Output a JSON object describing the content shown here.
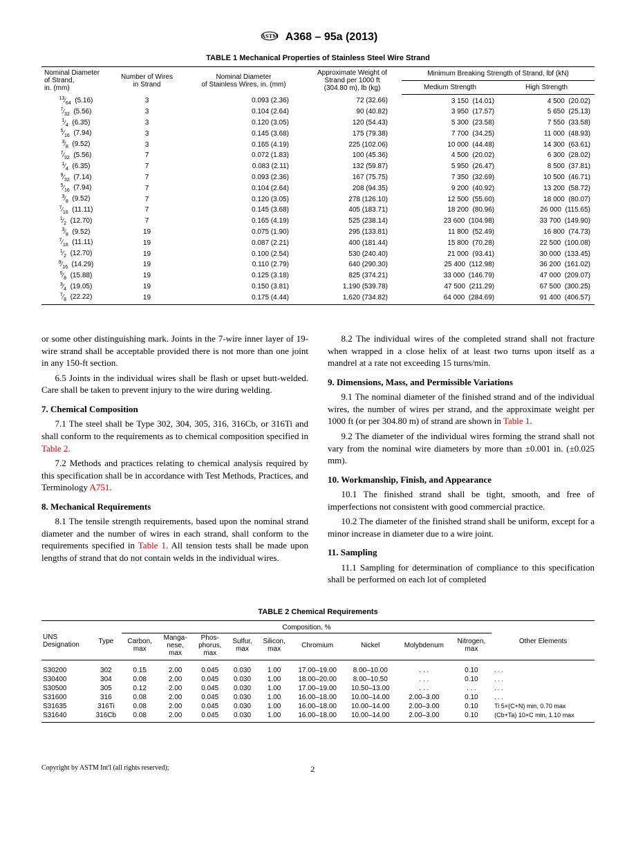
{
  "header": {
    "doc_id": "A368 – 95a (2013)"
  },
  "table1": {
    "caption": "TABLE 1 Mechanical Properties of Stainless Steel Wire Strand",
    "col_headers": {
      "nom_dia": "Nominal Diameter of Strand, in. (mm)",
      "num_wires": "Number of Wires in Strand",
      "wire_dia": "Nominal Diameter of Stainless Wires, in. (mm)",
      "weight": "Approximate Weight of Strand per 1000 ft (304.80 m), lb (kg)",
      "strength": "Minimum Breaking Strength of Strand, lbf (kN)",
      "med": "Medium Strength",
      "high": "High Strength"
    },
    "rows": [
      {
        "frac": "13/64",
        "mm": "(5.16)",
        "nw": "3",
        "wd": "0.093 (2.36)",
        "wt": "72",
        "wtk": "(32.66)",
        "ms": "3 150",
        "msk": "(14.01)",
        "hs": "4 500",
        "hsk": "(20.02)"
      },
      {
        "frac": "7/32",
        "mm": "(5.56)",
        "nw": "3",
        "wd": "0.104 (2.64)",
        "wt": "90",
        "wtk": "(40.82)",
        "ms": "3 950",
        "msk": "(17.57)",
        "hs": "5 650",
        "hsk": "(25.13)"
      },
      {
        "frac": "1/4",
        "mm": "(6.35)",
        "nw": "3",
        "wd": "0.120 (3.05)",
        "wt": "120",
        "wtk": "(54.43)",
        "ms": "5 300",
        "msk": "(23.58)",
        "hs": "7 550",
        "hsk": "(33.58)"
      },
      {
        "frac": "5/16",
        "mm": "(7.94)",
        "nw": "3",
        "wd": "0.145 (3.68)",
        "wt": "175",
        "wtk": "(79.38)",
        "ms": "7 700",
        "msk": "(34.25)",
        "hs": "11 000",
        "hsk": "(48.93)"
      },
      {
        "frac": "3/8",
        "mm": "(9.52)",
        "nw": "3",
        "wd": "0.165 (4.19)",
        "wt": "225",
        "wtk": "(102.06)",
        "ms": "10 000",
        "msk": "(44.48)",
        "hs": "14 300",
        "hsk": "(63.61)"
      },
      {
        "frac": "7/32",
        "mm": "(5.56)",
        "nw": "7",
        "wd": "0.072 (1.83)",
        "wt": "100",
        "wtk": "(45.36)",
        "ms": "4 500",
        "msk": "(20.02)",
        "hs": "6 300",
        "hsk": "(28.02)"
      },
      {
        "frac": "1/4",
        "mm": "(6.35)",
        "nw": "7",
        "wd": "0.083 (2.11)",
        "wt": "132",
        "wtk": "(59.87)",
        "ms": "5 950",
        "msk": "(26.47)",
        "hs": "8 500",
        "hsk": "(37.81)"
      },
      {
        "frac": "9/32",
        "mm": "(7.14)",
        "nw": "7",
        "wd": "0.093 (2.36)",
        "wt": "167",
        "wtk": "(75.75)",
        "ms": "7 350",
        "msk": "(32.69)",
        "hs": "10 500",
        "hsk": "(46.71)"
      },
      {
        "frac": "5/16",
        "mm": "(7.94)",
        "nw": "7",
        "wd": "0.104 (2.64)",
        "wt": "208",
        "wtk": "(94.35)",
        "ms": "9 200",
        "msk": "(40.92)",
        "hs": "13 200",
        "hsk": "(58.72)"
      },
      {
        "frac": "3/8",
        "mm": "(9.52)",
        "nw": "7",
        "wd": "0.120 (3.05)",
        "wt": "278",
        "wtk": "(126.10)",
        "ms": "12 500",
        "msk": "(55.60)",
        "hs": "18 000",
        "hsk": "(80.07)"
      },
      {
        "frac": "7/16",
        "mm": "(11.11)",
        "nw": "7",
        "wd": "0.145 (3.68)",
        "wt": "405",
        "wtk": "(183.71)",
        "ms": "18 200",
        "msk": "(80.96)",
        "hs": "26 000",
        "hsk": "(115.65)"
      },
      {
        "frac": "1/2",
        "mm": "(12.70)",
        "nw": "7",
        "wd": "0.165 (4.19)",
        "wt": "525",
        "wtk": "(238.14)",
        "ms": "23 600",
        "msk": "(104.98)",
        "hs": "33 700",
        "hsk": "(149.90)"
      },
      {
        "frac": "3/8",
        "mm": "(9.52)",
        "nw": "19",
        "wd": "0.075 (1.90)",
        "wt": "295",
        "wtk": "(133.81)",
        "ms": "11 800",
        "msk": "(52.49)",
        "hs": "16 800",
        "hsk": "(74.73)"
      },
      {
        "frac": "7/16",
        "mm": "(11.11)",
        "nw": "19",
        "wd": "0.087 (2.21)",
        "wt": "400",
        "wtk": "(181.44)",
        "ms": "15 800",
        "msk": "(70.28)",
        "hs": "22 500",
        "hsk": "(100.08)"
      },
      {
        "frac": "1/2",
        "mm": "(12.70)",
        "nw": "19",
        "wd": "0.100 (2.54)",
        "wt": "530",
        "wtk": "(240.40)",
        "ms": "21 000",
        "msk": "(93.41)",
        "hs": "30 000",
        "hsk": "(133.45)"
      },
      {
        "frac": "9/16",
        "mm": "(14.29)",
        "nw": "19",
        "wd": "0.110 (2.79)",
        "wt": "640",
        "wtk": "(290.30)",
        "ms": "25 400",
        "msk": "(112.98)",
        "hs": "36 200",
        "hsk": "(161.02)"
      },
      {
        "frac": "5/8",
        "mm": "(15.88)",
        "nw": "19",
        "wd": "0.125 (3.18)",
        "wt": "825",
        "wtk": "(374.21)",
        "ms": "33 000",
        "msk": "(146.79)",
        "hs": "47 000",
        "hsk": "(209.07)"
      },
      {
        "frac": "3/4",
        "mm": "(19.05)",
        "nw": "19",
        "wd": "0.150 (3.81)",
        "wt": "1,190",
        "wtk": "(539.78)",
        "ms": "47 500",
        "msk": "(211.29)",
        "hs": "67 500",
        "hsk": "(300.25)"
      },
      {
        "frac": "7/8",
        "mm": "(22.22)",
        "nw": "19",
        "wd": "0.175 (4.44)",
        "wt": "1,620",
        "wtk": "(734.82)",
        "ms": "64 000",
        "msk": "(284.69)",
        "hs": "91 400",
        "hsk": "(406.57)"
      }
    ]
  },
  "body": {
    "left": {
      "p1": "or some other distinguishing mark. Joints in the 7-wire inner layer of 19-wire strand shall be acceptable provided there is not more than one joint in any 150-ft section.",
      "p65": "6.5 Joints in the individual wires shall be flash or upset butt-welded. Care shall be taken to prevent injury to the wire during welding.",
      "h7": "7. Chemical Composition",
      "p71a": "7.1 The steel shall be Type 302, 304, 305, 316, 316Cb, or 316Ti and shall conform to the requirements as to chemical composition specified in ",
      "p71_link": "Table 2",
      "p71b": ".",
      "p72a": "7.2 Methods and practices relating to chemical analysis required by this specification shall be in accordance with Test Methods, Practices, and Terminology ",
      "p72_link": "A751",
      "p72b": ".",
      "h8": "8. Mechanical Requirements",
      "p81a": "8.1 The tensile strength requirements, based upon the nominal strand diameter and the number of wires in each strand, shall conform to the requirements specified in ",
      "p81_link": "Table 1",
      "p81b": ". All tension tests shall be made upon lengths of strand that do not contain welds in the individual wires."
    },
    "right": {
      "p82": "8.2 The individual wires of the completed strand shall not fracture when wrapped in a close helix of at least two turns upon itself as a mandrel at a rate not exceeding 15 turns/min.",
      "h9": "9. Dimensions, Mass, and Permissible Variations",
      "p91a": "9.1 The nominal diameter of the finished strand and of the individual wires, the number of wires per strand, and the approximate weight per 1000 ft (or per 304.80 m) of strand are shown in ",
      "p91_link": "Table 1",
      "p91b": ".",
      "p92": "9.2 The diameter of the individual wires forming the strand shall not vary from the nominal wire diameters by more than ±0.001 in. (±0.025 mm).",
      "h10": "10. Workmanship, Finish, and Appearance",
      "p101": "10.1 The finished strand shall be tight, smooth, and free of imperfections not consistent with good commercial practice.",
      "p102": "10.2 The diameter of the finished strand shall be uniform, except for a minor increase in diameter due to a wire joint.",
      "h11": "11. Sampling",
      "p111": "11.1 Sampling for determination of compliance to this specification shall be performed on each lot of completed"
    }
  },
  "table2": {
    "caption": "TABLE 2 Chemical Requirements",
    "cols": {
      "uns": "UNS Designation",
      "type": "Type",
      "comp": "Composition, %",
      "c": "Carbon, max",
      "mn": "Manga-nese, max",
      "p": "Phos-phorus, max",
      "s": "Sulfur, max",
      "si": "Silicon, max",
      "cr": "Chromium",
      "ni": "Nickel",
      "mo": "Molybdenum",
      "n": "Nitrogen, max",
      "other": "Other Elements"
    },
    "rows": [
      {
        "uns": "S30200",
        "type": "302",
        "c": "0.15",
        "mn": "2.00",
        "p": "0.045",
        "s": "0.030",
        "si": "1.00",
        "cr": "17.00–19.00",
        "ni": "8.00–10.00",
        "mo": ". . .",
        "n": "0.10",
        "other": ". . ."
      },
      {
        "uns": "S30400",
        "type": "304",
        "c": "0.08",
        "mn": "2.00",
        "p": "0.045",
        "s": "0.030",
        "si": "1.00",
        "cr": "18.00–20.00",
        "ni": "8.00–10.50",
        "mo": ". . .",
        "n": "0.10",
        "other": ". . ."
      },
      {
        "uns": "S30500",
        "type": "305",
        "c": "0.12",
        "mn": "2.00",
        "p": "0.045",
        "s": "0.030",
        "si": "1.00",
        "cr": "17.00–19.00",
        "ni": "10.50–13.00",
        "mo": ". . .",
        "n": ". . .",
        "other": ". . ."
      },
      {
        "uns": "S31600",
        "type": "316",
        "c": "0.08",
        "mn": "2.00",
        "p": "0.045",
        "s": "0.030",
        "si": "1.00",
        "cr": "16.00–18.00",
        "ni": "10.00–14.00",
        "mo": "2.00–3.00",
        "n": "0.10",
        "other": ". . ."
      },
      {
        "uns": "S31635",
        "type": "316Ti",
        "c": "0.08",
        "mn": "2.00",
        "p": "0.045",
        "s": "0.030",
        "si": "1.00",
        "cr": "16.00–18.00",
        "ni": "10.00–14.00",
        "mo": "2.00–3.00",
        "n": "0.10",
        "other": "Ti 5×(C+N) min, 0.70 max"
      },
      {
        "uns": "S31640",
        "type": "316Cb",
        "c": "0.08",
        "mn": "2.00",
        "p": "0.045",
        "s": "0.030",
        "si": "1.00",
        "cr": "16.00–18.00",
        "ni": "10.00–14.00",
        "mo": "2.00–3.00",
        "n": "0.10",
        "other": "(Cb+Ta) 10×C min, 1.10 max"
      }
    ]
  },
  "footer": {
    "copyright": "Copyright by ASTM Int'l (all rights reserved);",
    "page": "2"
  }
}
